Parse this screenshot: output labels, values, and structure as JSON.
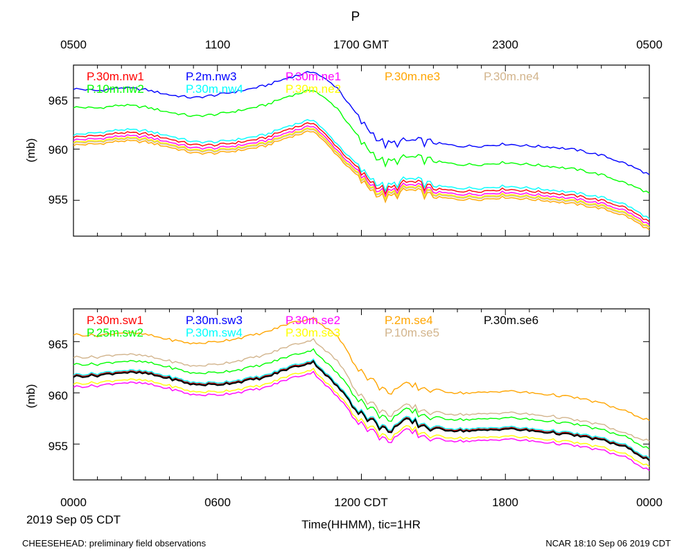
{
  "header": {
    "title": "P"
  },
  "axes": {
    "top_tick_labels": [
      "0500",
      "1100",
      "1700 GMT",
      "2300",
      "0500"
    ],
    "bottom_tick_labels": [
      "0000",
      "0600",
      "1200 CDT",
      "1800",
      "0000"
    ],
    "date_label": "2019 Sep 05 CDT",
    "x_title": "Time(HHMM), tic=1HR",
    "y_title": "(mb)",
    "y_tick_labels": [
      "955",
      "960",
      "965"
    ]
  },
  "footer": {
    "left": "CHEESEHEAD: preliminary field observations",
    "right": "NCAR 18:10 Sep 06 2019 CDT"
  },
  "chart_data": [
    {
      "type": "line",
      "title": "P",
      "xlabel": "Time(HHMM), tic=1HR",
      "ylabel": "(mb)",
      "xlim_hours_cdt": [
        0,
        24
      ],
      "ylim": [
        951.5,
        968.2
      ],
      "yticks": [
        955,
        960,
        965
      ],
      "x": [
        0,
        1,
        2,
        3,
        4,
        5,
        6,
        7,
        8,
        9,
        10,
        11,
        12,
        13,
        14,
        15,
        16,
        17,
        18,
        19,
        20,
        21,
        22,
        23,
        24
      ],
      "series": [
        {
          "name": "P.30m.nw1",
          "color": "#ff0000",
          "values": [
            961.2,
            961.3,
            961.6,
            961.5,
            961.0,
            960.4,
            960.4,
            960.7,
            961.1,
            962.0,
            962.6,
            960.2,
            957.6,
            955.9,
            956.8,
            956.1,
            955.9,
            955.9,
            956.1,
            955.9,
            955.7,
            955.4,
            955.0,
            954.3,
            952.9
          ]
        },
        {
          "name": "P.2m.nw3",
          "color": "#0000ff",
          "values": [
            965.9,
            965.7,
            966.0,
            965.8,
            965.3,
            965.0,
            965.3,
            965.7,
            966.2,
            967.0,
            967.6,
            966.0,
            962.6,
            960.4,
            960.8,
            960.6,
            960.3,
            960.3,
            960.5,
            960.3,
            960.2,
            959.9,
            959.4,
            958.6,
            957.5
          ]
        },
        {
          "name": "P.30m.ne1",
          "color": "#ff00ff",
          "values": [
            960.9,
            961.0,
            961.3,
            961.2,
            960.7,
            960.1,
            960.1,
            960.4,
            960.8,
            961.7,
            962.3,
            959.9,
            957.3,
            955.6,
            956.5,
            955.8,
            955.6,
            955.6,
            955.8,
            955.6,
            955.4,
            955.1,
            954.7,
            954.0,
            952.6
          ]
        },
        {
          "name": "P.30m.ne3",
          "color": "#ffa500",
          "values": [
            960.4,
            960.5,
            960.8,
            960.7,
            960.2,
            959.6,
            959.6,
            959.9,
            960.3,
            961.2,
            961.8,
            959.4,
            956.8,
            955.1,
            956.0,
            955.3,
            955.1,
            955.1,
            955.3,
            955.1,
            954.9,
            954.6,
            954.2,
            953.5,
            952.1
          ]
        },
        {
          "name": "P.30m.ne4",
          "color": "#d2b48c",
          "values": [
            960.6,
            960.7,
            961.0,
            960.9,
            960.4,
            959.8,
            959.8,
            960.1,
            960.5,
            961.4,
            962.0,
            959.6,
            957.0,
            955.3,
            956.2,
            955.5,
            955.3,
            955.3,
            955.5,
            955.3,
            955.1,
            954.8,
            954.4,
            953.7,
            952.3
          ]
        },
        {
          "name": "P.10m.nw2",
          "color": "#00ff00",
          "values": [
            964.1,
            964.0,
            964.3,
            964.1,
            963.6,
            963.2,
            963.4,
            963.8,
            964.3,
            965.2,
            965.8,
            964.0,
            960.6,
            958.6,
            959.2,
            958.8,
            958.5,
            958.5,
            958.7,
            958.5,
            958.3,
            958.0,
            957.5,
            956.7,
            955.7
          ]
        },
        {
          "name": "P.30m.nw4",
          "color": "#00ffff",
          "values": [
            961.4,
            961.6,
            961.9,
            961.8,
            961.3,
            960.7,
            960.7,
            961.0,
            961.4,
            962.3,
            962.9,
            960.5,
            957.9,
            956.2,
            957.1,
            956.4,
            956.2,
            956.2,
            956.4,
            956.2,
            956.0,
            955.7,
            955.3,
            954.6,
            953.2
          ]
        },
        {
          "name": "P.30m.ne2",
          "color": "#ffff00",
          "values": [
            960.7,
            960.8,
            961.1,
            961.0,
            960.5,
            959.9,
            959.9,
            960.2,
            960.6,
            961.5,
            962.1,
            959.7,
            957.1,
            955.4,
            956.3,
            955.6,
            955.4,
            955.4,
            955.6,
            955.4,
            955.2,
            954.9,
            954.5,
            953.8,
            952.4
          ]
        }
      ]
    },
    {
      "type": "line",
      "title": "",
      "xlabel": "Time(HHMM), tic=1HR",
      "ylabel": "(mb)",
      "xlim_hours_cdt": [
        0,
        24
      ],
      "ylim": [
        951.5,
        968.2
      ],
      "yticks": [
        955,
        960,
        965
      ],
      "x": [
        0,
        1,
        2,
        3,
        4,
        5,
        6,
        7,
        8,
        9,
        10,
        11,
        12,
        13,
        14,
        15,
        16,
        17,
        18,
        19,
        20,
        21,
        22,
        23,
        24
      ],
      "series": [
        {
          "name": "P.30m.sw1",
          "color": "#ff0000",
          "values": [
            961.7,
            961.8,
            962.1,
            962.0,
            961.5,
            960.9,
            960.9,
            961.2,
            961.6,
            962.5,
            963.1,
            960.7,
            958.1,
            956.4,
            957.3,
            956.6,
            956.4,
            956.4,
            956.6,
            956.4,
            956.2,
            955.9,
            955.5,
            954.8,
            953.5
          ]
        },
        {
          "name": "P.30m.sw3",
          "color": "#0000ff",
          "values": [
            961.6,
            961.7,
            962.0,
            961.9,
            961.4,
            960.8,
            960.8,
            961.1,
            961.5,
            962.4,
            963.0,
            960.6,
            958.0,
            956.3,
            957.2,
            956.5,
            956.3,
            956.3,
            956.5,
            956.3,
            956.1,
            955.8,
            955.4,
            954.7,
            953.4
          ]
        },
        {
          "name": "P.30m.se2",
          "color": "#ff00ff",
          "values": [
            960.6,
            960.7,
            961.0,
            960.9,
            960.4,
            959.8,
            959.8,
            960.1,
            960.5,
            961.4,
            962.0,
            959.6,
            957.0,
            955.3,
            956.2,
            955.5,
            955.3,
            955.3,
            955.5,
            955.3,
            955.1,
            954.8,
            954.4,
            953.7,
            952.4
          ]
        },
        {
          "name": "P.2m.se4",
          "color": "#ffa500",
          "values": [
            965.7,
            965.6,
            965.9,
            965.7,
            965.2,
            964.8,
            965.0,
            965.4,
            965.9,
            966.8,
            967.3,
            965.5,
            962.1,
            960.1,
            960.7,
            960.3,
            960.0,
            960.0,
            960.2,
            960.0,
            959.8,
            959.5,
            959.0,
            958.2,
            957.3
          ]
        },
        {
          "name": "P.30m.se6",
          "color": "#000000",
          "values": [
            961.6,
            961.7,
            962.0,
            961.9,
            961.4,
            960.8,
            960.8,
            961.1,
            961.5,
            962.4,
            963.0,
            960.6,
            958.0,
            956.3,
            957.2,
            956.5,
            956.3,
            956.3,
            956.5,
            956.3,
            956.1,
            955.8,
            955.4,
            954.7,
            953.4
          ]
        },
        {
          "name": "P.25m.sw2",
          "color": "#00ff00",
          "values": [
            962.8,
            962.8,
            963.1,
            963.0,
            962.5,
            961.9,
            962.0,
            962.3,
            962.8,
            963.6,
            964.2,
            961.9,
            959.2,
            957.4,
            958.2,
            957.6,
            957.4,
            957.4,
            957.6,
            957.4,
            957.2,
            956.9,
            956.4,
            955.7,
            954.5
          ]
        },
        {
          "name": "P.30m.sw4",
          "color": "#00ffff",
          "values": [
            961.8,
            961.9,
            962.2,
            962.1,
            961.6,
            961.0,
            961.0,
            961.3,
            961.7,
            962.6,
            963.2,
            960.8,
            958.2,
            956.5,
            957.4,
            956.7,
            956.5,
            956.5,
            956.7,
            956.5,
            956.3,
            956.0,
            955.6,
            954.9,
            953.6
          ]
        },
        {
          "name": "P.30m.se3",
          "color": "#ffff00",
          "values": [
            960.9,
            961.0,
            961.3,
            961.2,
            960.7,
            960.1,
            960.1,
            960.4,
            960.8,
            961.7,
            962.3,
            959.9,
            957.3,
            955.6,
            956.5,
            955.8,
            955.6,
            955.6,
            955.8,
            955.6,
            955.4,
            955.1,
            954.7,
            954.0,
            952.8
          ]
        },
        {
          "name": "P.10m.se5",
          "color": "#d2b48c",
          "values": [
            963.5,
            963.5,
            963.8,
            963.6,
            963.1,
            962.6,
            962.8,
            963.2,
            963.7,
            964.6,
            965.2,
            963.1,
            959.7,
            957.9,
            958.6,
            958.1,
            957.9,
            957.9,
            958.1,
            957.9,
            957.7,
            957.3,
            956.9,
            956.0,
            955.3
          ]
        }
      ]
    }
  ]
}
